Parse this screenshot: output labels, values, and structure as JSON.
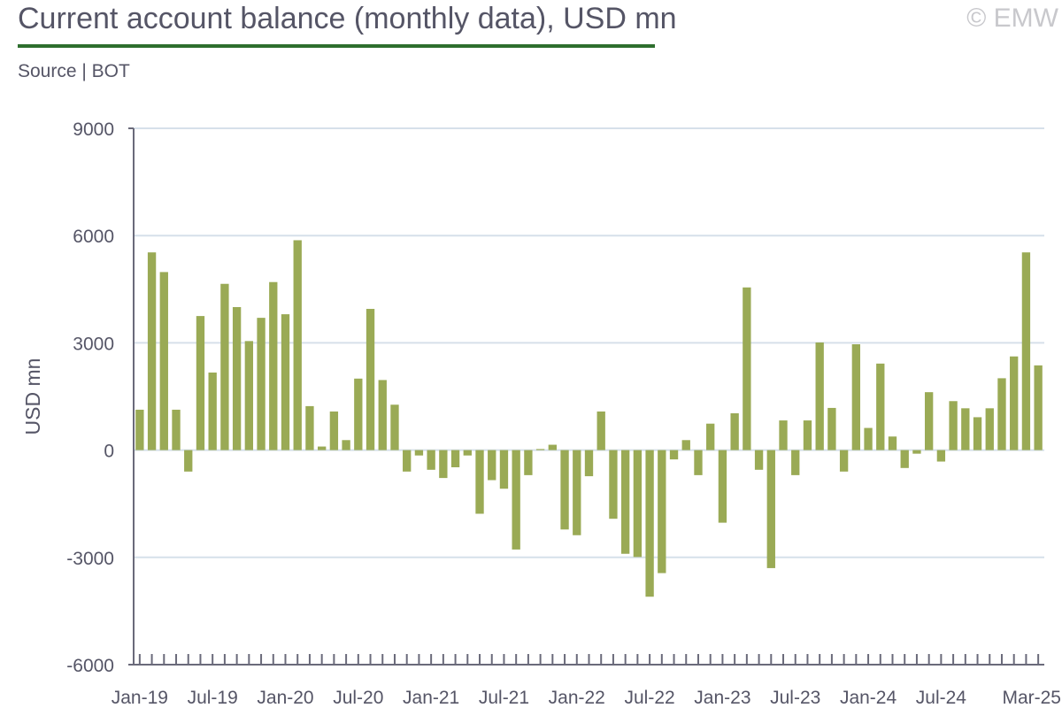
{
  "header": {
    "title": "Current account balance (monthly data), USD mn",
    "copyright": "© EMW",
    "source": "Source | BOT"
  },
  "colors": {
    "bar": "#9aaa55",
    "gridline": "#d6e0ea",
    "axis": "#6a6a7a",
    "title_rule": "#2e6e2e"
  },
  "chart_data": {
    "type": "bar",
    "ylabel": "USD mn",
    "ylim": [
      -6000,
      9000
    ],
    "yticks": [
      -6000,
      -3000,
      0,
      3000,
      6000,
      9000
    ],
    "grid": true,
    "x_tick_labels": [
      "Jan-19",
      "Jul-19",
      "Jan-20",
      "Jul-20",
      "Jan-21",
      "Jul-21",
      "Jan-22",
      "Jul-22",
      "Jan-23",
      "Jul-23",
      "Jan-24",
      "Jul-24",
      "Mar-25"
    ],
    "categories": [
      "Jan-19",
      "Feb-19",
      "Mar-19",
      "Apr-19",
      "May-19",
      "Jun-19",
      "Jul-19",
      "Aug-19",
      "Sep-19",
      "Oct-19",
      "Nov-19",
      "Dec-19",
      "Jan-20",
      "Feb-20",
      "Mar-20",
      "Apr-20",
      "May-20",
      "Jun-20",
      "Jul-20",
      "Aug-20",
      "Sep-20",
      "Oct-20",
      "Nov-20",
      "Dec-20",
      "Jan-21",
      "Feb-21",
      "Mar-21",
      "Apr-21",
      "May-21",
      "Jun-21",
      "Jul-21",
      "Aug-21",
      "Sep-21",
      "Oct-21",
      "Nov-21",
      "Dec-21",
      "Jan-22",
      "Feb-22",
      "Mar-22",
      "Apr-22",
      "May-22",
      "Jun-22",
      "Jul-22",
      "Aug-22",
      "Sep-22",
      "Oct-22",
      "Nov-22",
      "Dec-22",
      "Jan-23",
      "Feb-23",
      "Mar-23",
      "Apr-23",
      "May-23",
      "Jun-23",
      "Jul-23",
      "Aug-23",
      "Sep-23",
      "Oct-23",
      "Nov-23",
      "Dec-23",
      "Jan-24",
      "Feb-24",
      "Mar-24",
      "Apr-24",
      "May-24",
      "Jun-24",
      "Jul-24",
      "Aug-24",
      "Sep-24",
      "Oct-24",
      "Nov-24",
      "Dec-24",
      "Jan-25",
      "Feb-25",
      "Mar-25"
    ],
    "values": [
      1130,
      5530,
      4980,
      1130,
      -600,
      3750,
      2170,
      4650,
      4000,
      3050,
      3700,
      4700,
      3800,
      5870,
      1230,
      100,
      1080,
      280,
      2000,
      3950,
      1960,
      1270,
      -600,
      -150,
      -550,
      -780,
      -480,
      -150,
      -1780,
      -840,
      -1080,
      -2780,
      -700,
      30,
      150,
      -2220,
      -2380,
      -730,
      1080,
      -1920,
      -2900,
      -2990,
      -4100,
      -3440,
      -260,
      280,
      -700,
      740,
      -2030,
      1030,
      4550,
      -550,
      -3300,
      830,
      -700,
      830,
      3010,
      1180,
      -600,
      2960,
      620,
      2420,
      380,
      -500,
      -100,
      1620,
      -320,
      1370,
      1170,
      920,
      1170,
      2010,
      2620,
      5530,
      2370
    ]
  }
}
